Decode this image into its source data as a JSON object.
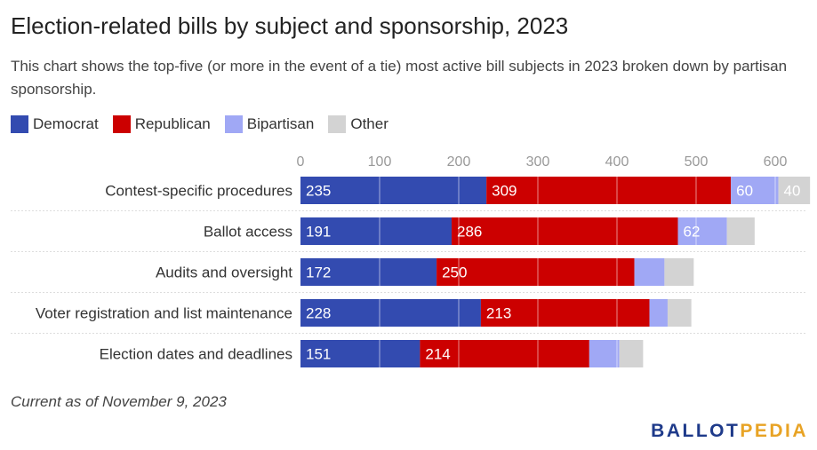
{
  "title": "Election-related bills by subject and sponsorship, 2023",
  "subtitle": "This chart shows the top-five (or more in the event of a tie) most active bill subjects in 2023 broken down by partisan sponsorship.",
  "note": "Current as of November 9, 2023",
  "logo": {
    "part1": "BALLOT",
    "part2": "PEDIA",
    "color1": "#1e3a8a",
    "color2": "#e8a325"
  },
  "colors": {
    "text": "#333333",
    "grid": "#ffffff",
    "rowline": "#dddddd"
  },
  "chart_data": {
    "type": "bar",
    "orientation": "horizontal",
    "stacked": true,
    "title": "Election-related bills by subject and sponsorship, 2023",
    "legend_position": "top-left",
    "categories": [
      "Contest-specific procedures",
      "Ballot access",
      "Audits and oversight",
      "Voter registration and list maintenance",
      "Election dates and deadlines"
    ],
    "xlim": [
      0,
      600
    ],
    "xticks": [
      0,
      100,
      200,
      300,
      400,
      500,
      600
    ],
    "series": [
      {
        "name": "Democrat",
        "color": "#334bb0",
        "values": [
          235,
          191,
          172,
          228,
          151
        ],
        "labels": [
          "235",
          "191",
          "172",
          "228",
          "151"
        ]
      },
      {
        "name": "Republican",
        "color": "#cc0000",
        "values": [
          309,
          286,
          250,
          213,
          214
        ],
        "labels": [
          "309",
          "286",
          "250",
          "213",
          "214"
        ]
      },
      {
        "name": "Bipartisan",
        "color": "#a0a8f5",
        "values": [
          60,
          62,
          38,
          23,
          38
        ],
        "labels": [
          "60",
          "62",
          "",
          "",
          ""
        ]
      },
      {
        "name": "Other",
        "color": "#d3d3d3",
        "values": [
          40,
          35,
          37,
          30,
          30
        ],
        "labels": [
          "40",
          "",
          "",
          "",
          ""
        ]
      }
    ]
  }
}
